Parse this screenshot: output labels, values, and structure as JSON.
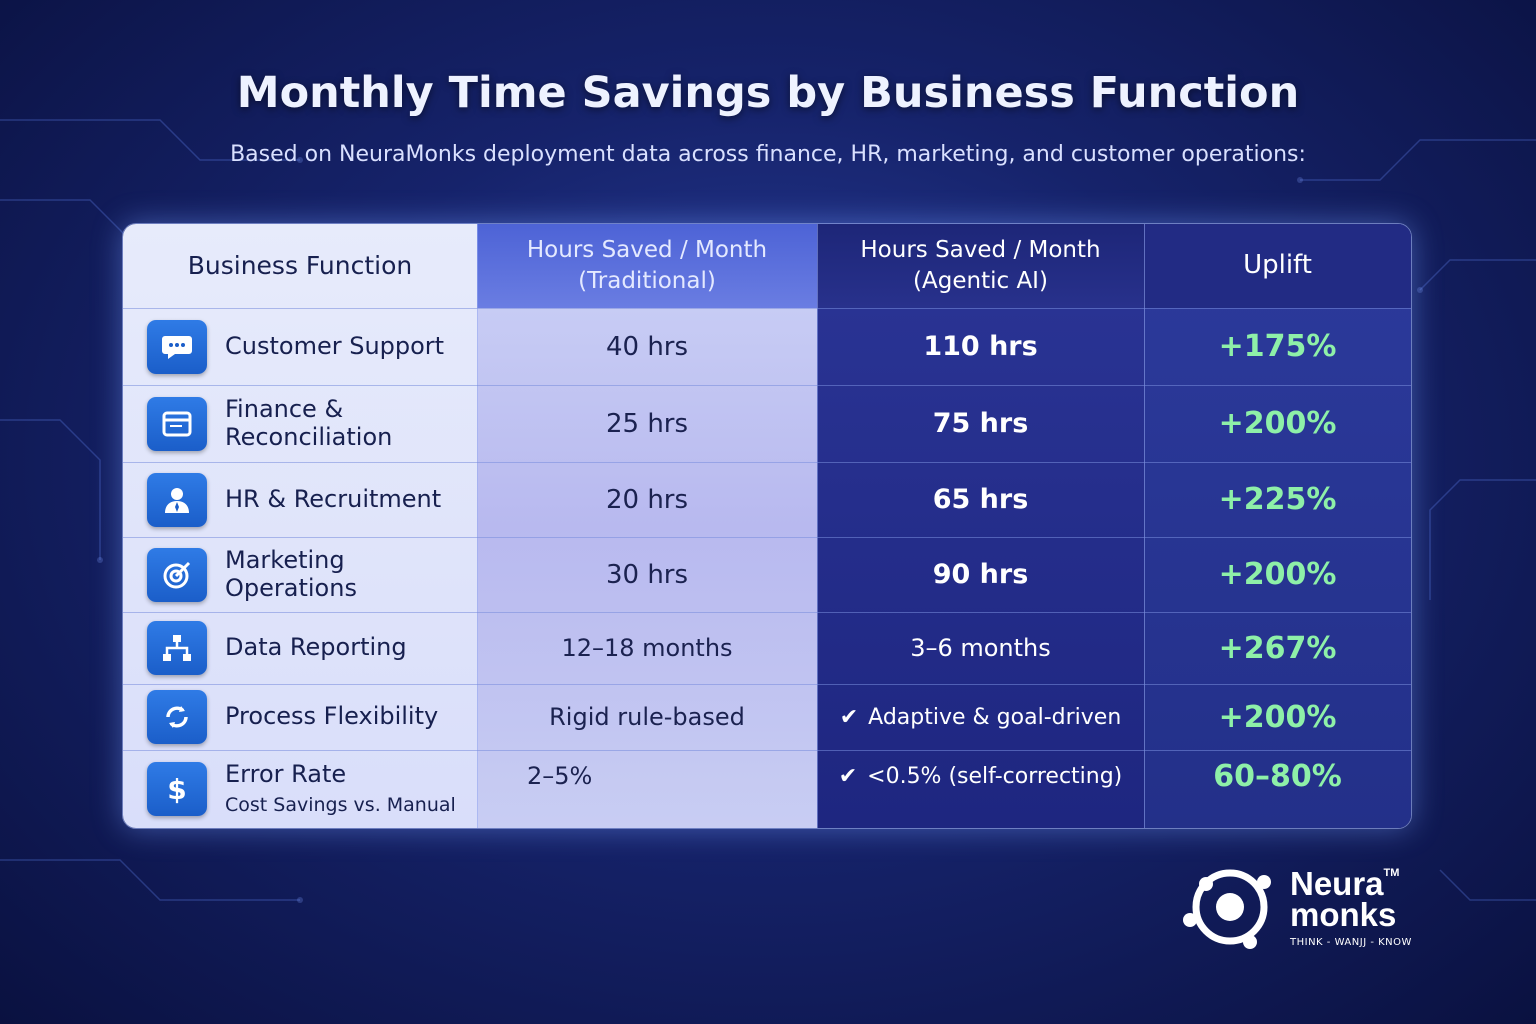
{
  "title": "Monthly Time Savings by Business Function",
  "subtitle": "Based on NeuraMonks deployment data across finance, HR, marketing, and customer operations:",
  "chart_data": {
    "type": "table",
    "columns": [
      "Business Function",
      "Hours Saved / Month (Traditional)",
      "Hours Saved / Month (Agentic AI)",
      "Uplift"
    ],
    "header": {
      "col1": "Business Function",
      "col2_line1": "Hours Saved / Month",
      "col2_line2": "(Traditional)",
      "col3_line1": "Hours Saved / Month",
      "col3_line2": "(Agentic AI)",
      "col4": "Uplift"
    },
    "rows": [
      {
        "icon": "chat-icon",
        "function": "Customer Support",
        "traditional": "40 hrs",
        "agentic": "110 hrs",
        "uplift": "+175%"
      },
      {
        "icon": "document-icon",
        "function": "Finance & Reconciliation",
        "traditional": "25 hrs",
        "agentic": "75 hrs",
        "uplift": "+200%"
      },
      {
        "icon": "person-icon",
        "function": "HR & Recruitment",
        "traditional": "20 hrs",
        "agentic": "65 hrs",
        "uplift": "+225%"
      },
      {
        "icon": "target-icon",
        "function": "Marketing Operations",
        "traditional": "30 hrs",
        "agentic": "90 hrs",
        "uplift": "+200%"
      },
      {
        "icon": "hierarchy-icon",
        "function": "Data Reporting",
        "traditional": "12–18 months",
        "agentic": "3–6 months",
        "uplift": "+267%"
      },
      {
        "icon": "refresh-icon",
        "function": "Process Flexibility",
        "traditional": "Rigid rule-based",
        "agentic": "Adaptive & goal-driven",
        "uplift": "+200%"
      },
      {
        "icon": "dollar-icon",
        "function": "Error Rate",
        "function_sub": "Cost Savings vs. Manual",
        "traditional": "2–5%",
        "agentic": "<0.5% (self-correcting)",
        "uplift": "60–80%"
      }
    ]
  },
  "logo": {
    "line1": "Neura",
    "line2": "monks",
    "trademark": "TM",
    "tagline": "THINK - WANJJ - KNOW"
  },
  "colors": {
    "uplift": "#8ef0a8",
    "icon": "#2f7be6",
    "background": "#16236b"
  }
}
